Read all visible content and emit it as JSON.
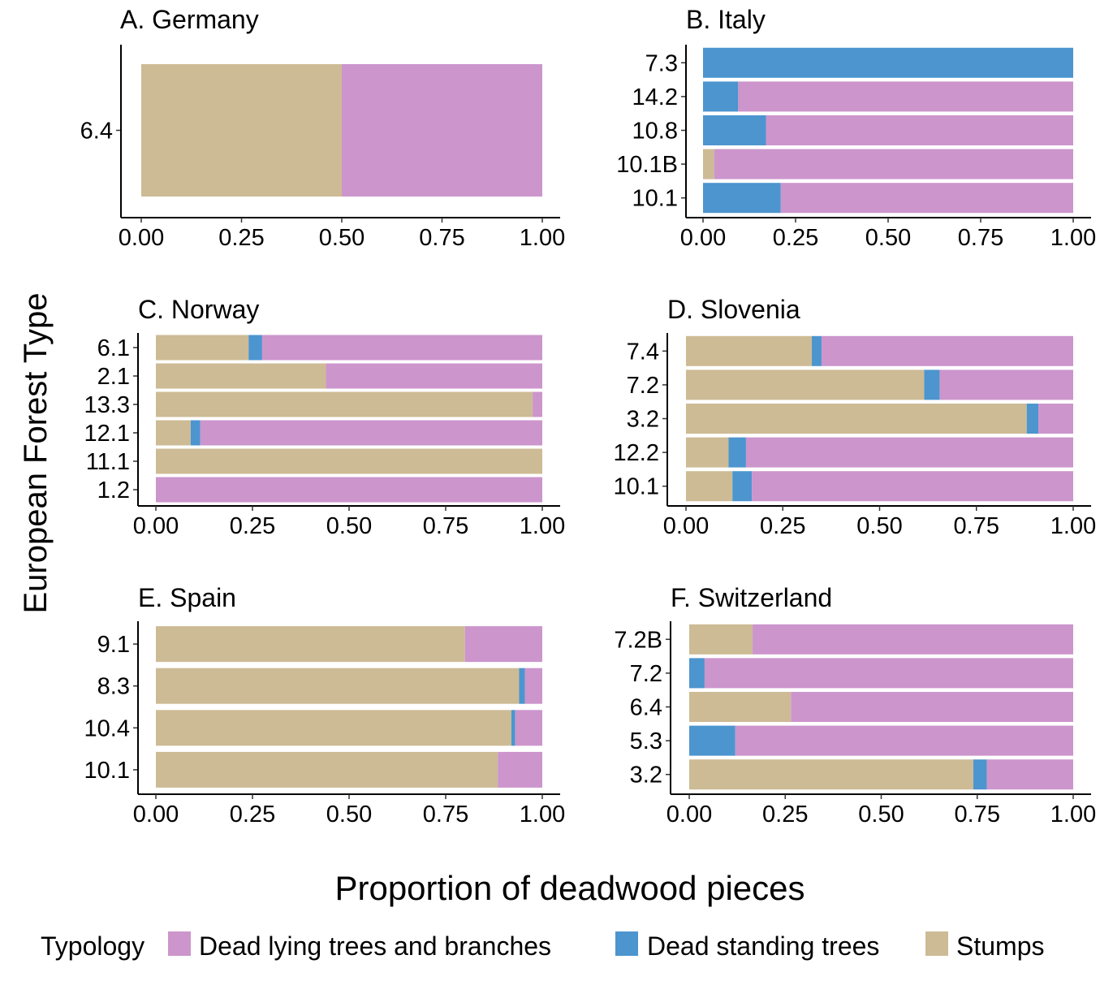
{
  "figure": {
    "y_axis_label": "European Forest Type",
    "x_axis_label": "Proportion of deadwood pieces"
  },
  "legend": {
    "title": "Typology",
    "items": [
      {
        "label": "Dead lying trees and branches",
        "color": "#cc95cc"
      },
      {
        "label": "Dead standing trees",
        "color": "#4c95cf"
      },
      {
        "label": "Stumps",
        "color": "#cdbb95"
      }
    ]
  },
  "chart_data": [
    {
      "type": "bar",
      "orientation": "horizontal",
      "stacked": true,
      "title": "A. Germany",
      "categories": [
        "6.4"
      ],
      "series": [
        {
          "name": "Stumps",
          "values": [
            0.5
          ]
        },
        {
          "name": "Dead standing trees",
          "values": [
            0.0
          ]
        },
        {
          "name": "Dead lying trees and branches",
          "values": [
            0.5
          ]
        }
      ],
      "xlim": [
        0,
        1
      ],
      "xticks": [
        "0.00",
        "0.25",
        "0.50",
        "0.75",
        "1.00"
      ]
    },
    {
      "type": "bar",
      "orientation": "horizontal",
      "stacked": true,
      "title": "B. Italy",
      "categories": [
        "7.3",
        "14.2",
        "10.8",
        "10.1B",
        "10.1"
      ],
      "series": [
        {
          "name": "Stumps",
          "values": [
            0.0,
            0.0,
            0.0,
            0.03,
            0.0
          ]
        },
        {
          "name": "Dead standing trees",
          "values": [
            1.0,
            0.095,
            0.17,
            0.0,
            0.21
          ]
        },
        {
          "name": "Dead lying trees and branches",
          "values": [
            0.0,
            0.905,
            0.83,
            0.97,
            0.79
          ]
        }
      ],
      "xlim": [
        0,
        1
      ],
      "xticks": [
        "0.00",
        "0.25",
        "0.50",
        "0.75",
        "1.00"
      ]
    },
    {
      "type": "bar",
      "orientation": "horizontal",
      "stacked": true,
      "title": "C. Norway",
      "categories": [
        "6.1",
        "2.1",
        "13.3",
        "12.1",
        "11.1",
        "1.2"
      ],
      "series": [
        {
          "name": "Stumps",
          "values": [
            0.24,
            0.44,
            0.975,
            0.09,
            1.0,
            0.0
          ]
        },
        {
          "name": "Dead standing trees",
          "values": [
            0.035,
            0.0,
            0.0,
            0.025,
            0.0,
            0.0
          ]
        },
        {
          "name": "Dead lying trees and branches",
          "values": [
            0.725,
            0.56,
            0.025,
            0.885,
            0.0,
            1.0
          ]
        }
      ],
      "xlim": [
        0,
        1
      ],
      "xticks": [
        "0.00",
        "0.25",
        "0.50",
        "0.75",
        "1.00"
      ]
    },
    {
      "type": "bar",
      "orientation": "horizontal",
      "stacked": true,
      "title": "D. Slovenia",
      "categories": [
        "7.4",
        "7.2",
        "3.2",
        "12.2",
        "10.1"
      ],
      "series": [
        {
          "name": "Stumps",
          "values": [
            0.325,
            0.615,
            0.88,
            0.11,
            0.12
          ]
        },
        {
          "name": "Dead standing trees",
          "values": [
            0.025,
            0.04,
            0.03,
            0.045,
            0.05
          ]
        },
        {
          "name": "Dead lying trees and branches",
          "values": [
            0.65,
            0.345,
            0.09,
            0.845,
            0.83
          ]
        }
      ],
      "xlim": [
        0,
        1
      ],
      "xticks": [
        "0.00",
        "0.25",
        "0.50",
        "0.75",
        "1.00"
      ]
    },
    {
      "type": "bar",
      "orientation": "horizontal",
      "stacked": true,
      "title": "E. Spain",
      "categories": [
        "9.1",
        "8.3",
        "10.4",
        "10.1"
      ],
      "series": [
        {
          "name": "Stumps",
          "values": [
            0.8,
            0.94,
            0.92,
            0.885
          ]
        },
        {
          "name": "Dead standing trees",
          "values": [
            0.0,
            0.015,
            0.01,
            0.0
          ]
        },
        {
          "name": "Dead lying trees and branches",
          "values": [
            0.2,
            0.045,
            0.07,
            0.115
          ]
        }
      ],
      "xlim": [
        0,
        1
      ],
      "xticks": [
        "0.00",
        "0.25",
        "0.50",
        "0.75",
        "1.00"
      ]
    },
    {
      "type": "bar",
      "orientation": "horizontal",
      "stacked": true,
      "title": "F. Switzerland",
      "categories": [
        "7.2B",
        "7.2",
        "6.4",
        "5.3",
        "3.2"
      ],
      "series": [
        {
          "name": "Stumps",
          "values": [
            0.165,
            0.0,
            0.265,
            0.0,
            0.74
          ]
        },
        {
          "name": "Dead standing trees",
          "values": [
            0.0,
            0.04,
            0.0,
            0.12,
            0.035
          ]
        },
        {
          "name": "Dead lying trees and branches",
          "values": [
            0.835,
            0.96,
            0.735,
            0.88,
            0.225
          ]
        }
      ],
      "xlim": [
        0,
        1
      ],
      "xticks": [
        "0.00",
        "0.25",
        "0.50",
        "0.75",
        "1.00"
      ]
    }
  ]
}
